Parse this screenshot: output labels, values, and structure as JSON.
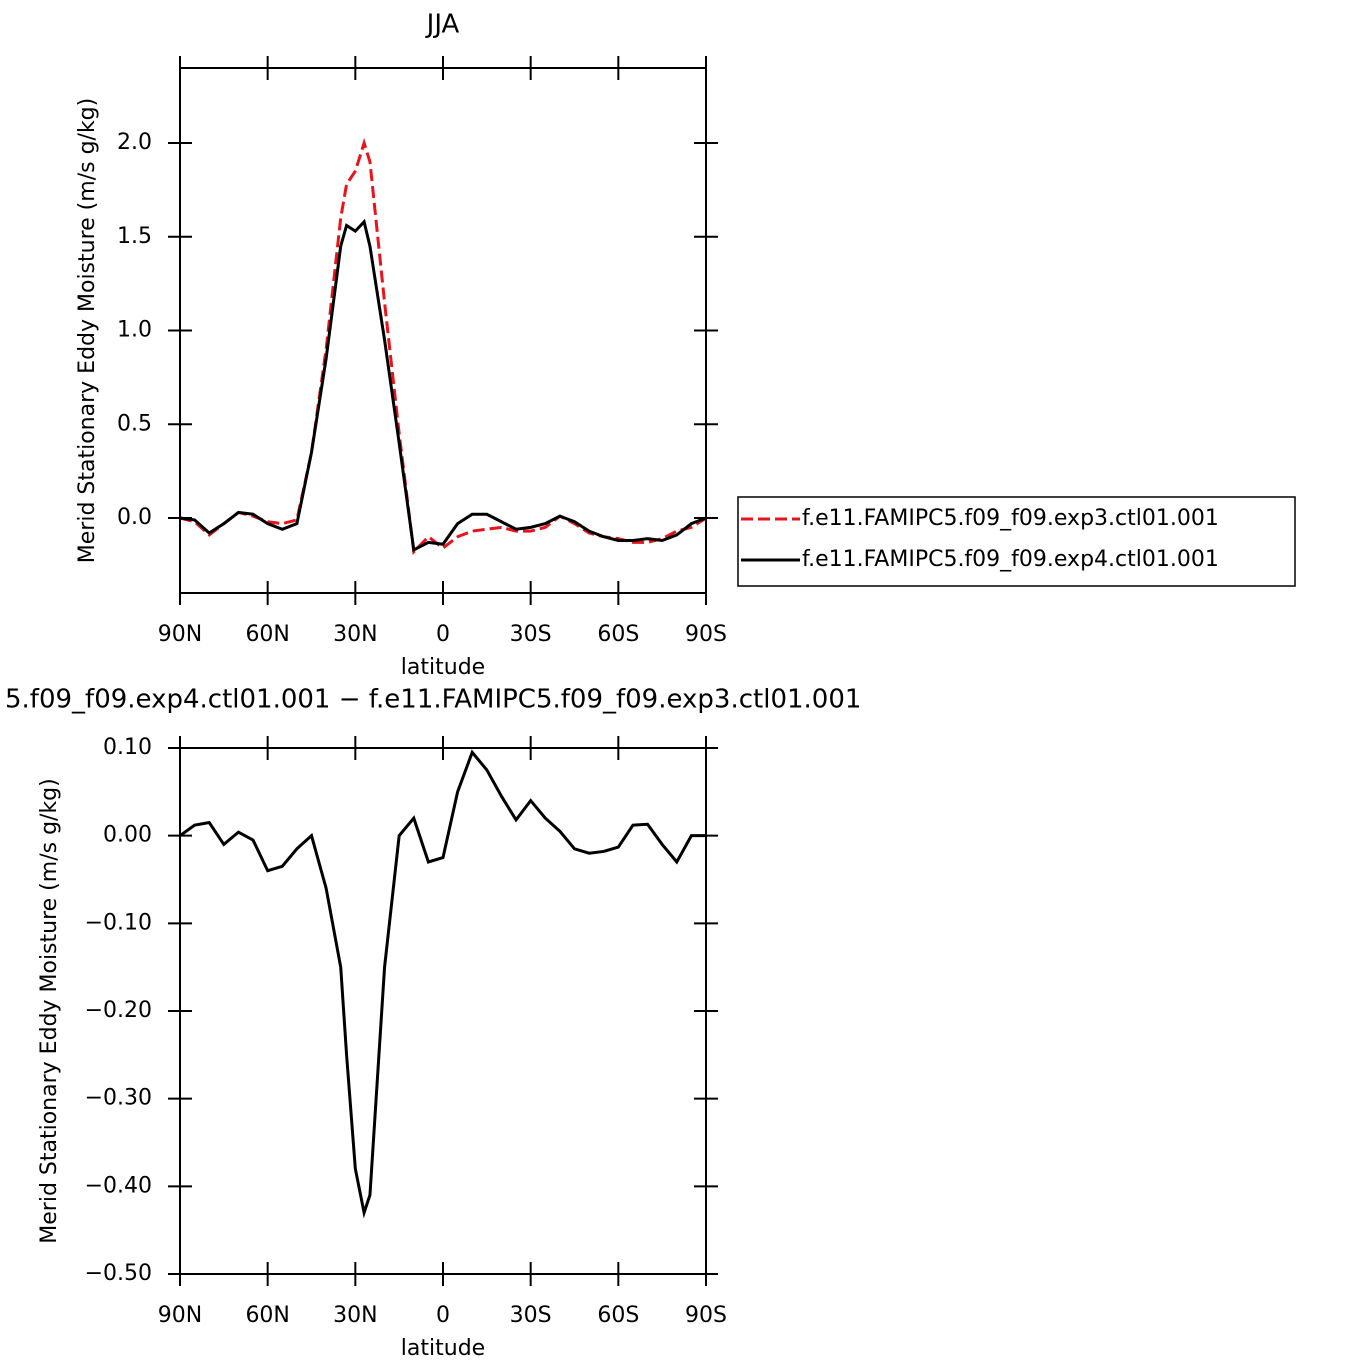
{
  "chart_data": [
    {
      "type": "line",
      "title": "JJA",
      "x_label": "latitude",
      "y_label": "Merid Stationary Eddy Moisture (m/s g/kg)",
      "x": [
        90,
        85,
        80,
        75,
        70,
        65,
        60,
        55,
        50,
        45,
        40,
        35,
        33,
        30,
        27,
        25,
        20,
        15,
        10,
        5,
        0,
        -5,
        -10,
        -15,
        -20,
        -25,
        -30,
        -35,
        -40,
        -45,
        -50,
        -55,
        -60,
        -65,
        -70,
        -75,
        -80,
        -85,
        -90
      ],
      "series": [
        {
          "name": "f.e11.FAMIPC5.f09_f09.exp3.ctl01.001",
          "color": "#e8141c",
          "dashed": true,
          "values": [
            0,
            -0.02,
            -0.09,
            -0.03,
            0.03,
            0.01,
            -0.02,
            -0.03,
            -0.01,
            0.35,
            0.9,
            1.6,
            1.78,
            1.85,
            2.0,
            1.9,
            1.15,
            0.45,
            -0.18,
            -0.1,
            -0.16,
            -0.1,
            -0.07,
            -0.06,
            -0.05,
            -0.07,
            -0.07,
            -0.05,
            0.01,
            -0.03,
            -0.08,
            -0.1,
            -0.11,
            -0.13,
            -0.13,
            -0.11,
            -0.07,
            -0.05,
            0
          ]
        },
        {
          "name": "f.e11.FAMIPC5.f09_f09.exp4.ctl01.001",
          "color": "#000000",
          "dashed": false,
          "values": [
            0,
            -0.01,
            -0.08,
            -0.03,
            0.03,
            0.02,
            -0.03,
            -0.06,
            -0.03,
            0.35,
            0.85,
            1.45,
            1.56,
            1.53,
            1.58,
            1.45,
            0.95,
            0.4,
            -0.17,
            -0.13,
            -0.14,
            -0.03,
            0.02,
            0.02,
            -0.02,
            -0.06,
            -0.05,
            -0.03,
            0.01,
            -0.02,
            -0.07,
            -0.1,
            -0.12,
            -0.12,
            -0.11,
            -0.12,
            -0.09,
            -0.03,
            0
          ]
        }
      ],
      "xlim": [
        90,
        -90
      ],
      "xticks": [
        {
          "value": 90,
          "label": "90N"
        },
        {
          "value": 60,
          "label": "60N"
        },
        {
          "value": 30,
          "label": "30N"
        },
        0,
        {
          "value": -30,
          "label": "30S"
        },
        {
          "value": -60,
          "label": "60S"
        },
        {
          "value": -90,
          "label": "90S"
        }
      ],
      "ylim": [
        -0.4,
        2.4
      ],
      "yticks": [
        {
          "value": 0,
          "label": "0.0"
        },
        0.5,
        {
          "value": 1,
          "label": "1.0"
        },
        1.5,
        {
          "value": 2,
          "label": "2.0"
        }
      ],
      "legend": "right-outside"
    },
    {
      "type": "line",
      "title": "5.f09_f09.exp4.ctl01.001 − f.e11.FAMIPC5.f09_f09.exp3.ctl01.001",
      "x_label": "latitude",
      "y_label": "Merid Stationary Eddy Moisture (m/s g/kg)",
      "x": [
        90,
        85,
        80,
        75,
        70,
        65,
        60,
        55,
        50,
        45,
        40,
        35,
        33,
        30,
        27,
        25,
        20,
        15,
        10,
        5,
        0,
        -5,
        -10,
        -15,
        -20,
        -25,
        -30,
        -35,
        -40,
        -45,
        -50,
        -55,
        -60,
        -65,
        -70,
        -75,
        -80,
        -85,
        -90
      ],
      "series": [
        {
          "color": "#000000",
          "dashed": false,
          "values": [
            0,
            0.012,
            0.015,
            -0.01,
            0.004,
            -0.005,
            -0.04,
            -0.035,
            -0.015,
            0,
            -0.06,
            -0.15,
            -0.25,
            -0.38,
            -0.43,
            -0.41,
            -0.15,
            0,
            0.02,
            -0.03,
            -0.025,
            0.05,
            0.095,
            0.075,
            0.045,
            0.018,
            0.04,
            0.02,
            0.005,
            -0.015,
            -0.02,
            -0.018,
            -0.013,
            0.012,
            0.013,
            -0.01,
            -0.03,
            0,
            0
          ]
        }
      ],
      "xlim": [
        90,
        -90
      ],
      "xticks": [
        {
          "value": 90,
          "label": "90N"
        },
        {
          "value": 60,
          "label": "60N"
        },
        {
          "value": 30,
          "label": "30N"
        },
        0,
        {
          "value": -30,
          "label": "30S"
        },
        {
          "value": -60,
          "label": "60S"
        },
        {
          "value": -90,
          "label": "90S"
        }
      ],
      "ylim": [
        -0.5,
        0.1
      ],
      "yticks": [
        {
          "value": -0.5,
          "label": "−0.50"
        },
        {
          "value": -0.4,
          "label": "−0.40"
        },
        {
          "value": -0.3,
          "label": "−0.30"
        },
        {
          "value": -0.2,
          "label": "−0.20"
        },
        {
          "value": -0.1,
          "label": "−0.10"
        },
        {
          "value": 0,
          "label": "0.00"
        },
        {
          "value": 0.1,
          "label": "0.10"
        }
      ]
    }
  ]
}
